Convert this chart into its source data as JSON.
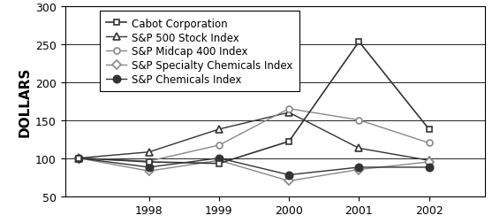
{
  "years": [
    1997,
    1998,
    1999,
    2000,
    2001,
    2002
  ],
  "series": [
    {
      "label": "Cabot Corporation",
      "values": [
        100,
        95,
        93,
        122,
        253,
        138
      ],
      "marker": "s",
      "color": "#333333",
      "linewidth": 1.2,
      "markersize": 5,
      "fillstyle": "none",
      "zorder": 4
    },
    {
      "label": "S&P 500 Stock Index",
      "values": [
        100,
        108,
        138,
        160,
        113,
        97
      ],
      "marker": "^",
      "color": "#333333",
      "linewidth": 1.0,
      "markersize": 6,
      "fillstyle": "none",
      "zorder": 3
    },
    {
      "label": "S&P Midcap 400 Index",
      "values": [
        100,
        96,
        117,
        165,
        150,
        120
      ],
      "marker": "o",
      "color": "#888888",
      "linewidth": 1.0,
      "markersize": 5,
      "fillstyle": "none",
      "zorder": 3
    },
    {
      "label": "S&P Specialty Chemicals Index",
      "values": [
        100,
        83,
        97,
        70,
        85,
        95
      ],
      "marker": "D",
      "color": "#888888",
      "linewidth": 1.0,
      "markersize": 5,
      "fillstyle": "none",
      "zorder": 3
    },
    {
      "label": "S&P Chemicals Index",
      "values": [
        100,
        88,
        100,
        78,
        88,
        88
      ],
      "marker": "o",
      "color": "#333333",
      "linewidth": 1.0,
      "markersize": 6,
      "fillstyle": "full",
      "zorder": 3
    }
  ],
  "ylabel": "DOLLARS",
  "ylim": [
    50,
    300
  ],
  "yticks": [
    50,
    100,
    150,
    200,
    250,
    300
  ],
  "xticks": [
    1998,
    1999,
    2000,
    2001,
    2002
  ],
  "xlim": [
    1996.8,
    2002.8
  ],
  "background_color": "#ffffff",
  "legend_fontsize": 8.5,
  "ylabel_fontsize": 11,
  "tick_fontsize": 9
}
